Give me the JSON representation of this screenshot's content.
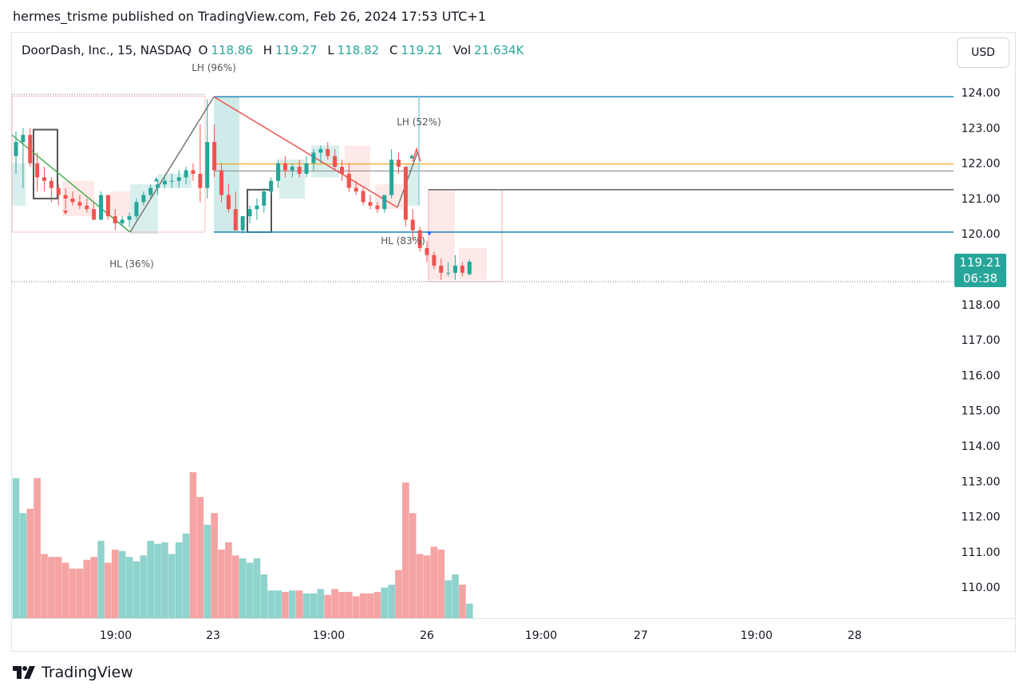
{
  "publisher_line": "hermes_trisme published on TradingView.com, Feb 26, 2024 17:53 UTC+1",
  "legend": {
    "title": "DoorDash, Inc., 15, NASDAQ",
    "open_label": "O",
    "open": "118.86",
    "high_label": "H",
    "high": "119.27",
    "low_label": "L",
    "low": "118.82",
    "close_label": "C",
    "close": "119.21",
    "vol_label": "Vol",
    "vol": "21.634K"
  },
  "currency": "USD",
  "last_price": {
    "price": "119.21",
    "countdown": "06:38"
  },
  "brand": "TradingView",
  "colors": {
    "up": "#26a69a",
    "down": "#ef5350",
    "vol_up": "#8fd3cd",
    "vol_down": "#f5a3a3",
    "blue_line": "#2962ff",
    "orange_line": "#f5a623"
  },
  "chart_data": {
    "type": "candlestick",
    "interval": "15",
    "symbol": "DoorDash, Inc. (NASDAQ)",
    "price_axis_ticks": [
      "124.00",
      "123.00",
      "122.00",
      "121.00",
      "120.00",
      "118.00",
      "117.00",
      "116.00",
      "115.00",
      "114.00",
      "113.00",
      "112.00",
      "111.00",
      "110.00"
    ],
    "time_axis_ticks": [
      "19:00",
      "23",
      "19:00",
      "26",
      "19:00",
      "27",
      "19:00",
      "28"
    ],
    "ylim": [
      109.1,
      125.3
    ],
    "candles": [
      [
        122.2,
        122.9,
        121.7,
        122.6
      ],
      [
        122.6,
        123.0,
        121.3,
        122.8
      ],
      [
        122.8,
        123.0,
        121.9,
        122.0
      ],
      [
        122.0,
        122.3,
        121.2,
        121.6
      ],
      [
        121.6,
        121.9,
        121.2,
        121.5
      ],
      [
        121.5,
        121.6,
        120.9,
        121.3
      ],
      [
        121.3,
        121.4,
        120.8,
        121.1
      ],
      [
        121.1,
        121.3,
        120.7,
        121.0
      ],
      [
        121.0,
        121.2,
        120.8,
        120.9
      ],
      [
        120.9,
        121.1,
        120.7,
        120.8
      ],
      [
        120.8,
        121.0,
        120.6,
        120.7
      ],
      [
        120.7,
        120.9,
        120.4,
        120.4
      ],
      [
        120.4,
        121.2,
        120.4,
        121.1
      ],
      [
        121.1,
        121.1,
        120.4,
        120.5
      ],
      [
        120.5,
        120.7,
        120.1,
        120.3
      ],
      [
        120.3,
        120.5,
        120.2,
        120.4
      ],
      [
        120.4,
        120.6,
        120.2,
        120.5
      ],
      [
        120.5,
        121.0,
        120.4,
        120.9
      ],
      [
        120.9,
        121.2,
        120.8,
        121.1
      ],
      [
        121.1,
        121.4,
        121.0,
        121.3
      ],
      [
        121.3,
        121.5,
        121.1,
        121.4
      ],
      [
        121.4,
        121.6,
        121.3,
        121.5
      ],
      [
        121.5,
        121.7,
        121.3,
        121.5
      ],
      [
        121.5,
        121.8,
        121.3,
        121.6
      ],
      [
        121.6,
        121.9,
        121.4,
        121.8
      ],
      [
        121.8,
        122.0,
        121.5,
        121.7
      ],
      [
        121.7,
        123.1,
        120.9,
        121.3
      ],
      [
        121.3,
        123.8,
        121.0,
        122.6
      ],
      [
        122.6,
        123.1,
        121.6,
        121.8
      ],
      [
        121.8,
        122.0,
        120.9,
        121.1
      ],
      [
        121.1,
        121.4,
        120.6,
        120.7
      ],
      [
        120.7,
        121.2,
        120.1,
        120.1
      ],
      [
        120.1,
        120.5,
        120.0,
        120.5
      ],
      [
        120.5,
        120.8,
        120.3,
        120.7
      ],
      [
        120.7,
        121.0,
        120.4,
        120.8
      ],
      [
        120.8,
        121.3,
        120.6,
        121.2
      ],
      [
        121.2,
        121.6,
        121.1,
        121.5
      ],
      [
        121.5,
        122.1,
        121.3,
        122.0
      ],
      [
        122.0,
        122.2,
        121.6,
        121.8
      ],
      [
        121.8,
        122.0,
        121.6,
        121.9
      ],
      [
        121.9,
        122.1,
        121.6,
        121.7
      ],
      [
        121.7,
        122.2,
        121.6,
        122.0
      ],
      [
        122.0,
        122.4,
        121.8,
        122.3
      ],
      [
        122.3,
        122.5,
        122.0,
        122.4
      ],
      [
        122.4,
        122.6,
        122.1,
        122.2
      ],
      [
        122.2,
        122.4,
        121.8,
        121.9
      ],
      [
        121.9,
        122.1,
        121.5,
        121.7
      ],
      [
        121.7,
        122.0,
        121.2,
        121.3
      ],
      [
        121.3,
        121.5,
        121.1,
        121.2
      ],
      [
        121.2,
        121.3,
        120.8,
        120.9
      ],
      [
        120.9,
        121.1,
        120.7,
        120.8
      ],
      [
        120.8,
        120.9,
        120.6,
        120.7
      ],
      [
        120.7,
        121.1,
        120.6,
        121.1
      ],
      [
        121.1,
        122.4,
        121.0,
        122.1
      ],
      [
        122.1,
        122.3,
        121.7,
        121.9
      ],
      [
        121.9,
        121.9,
        120.2,
        120.4
      ],
      [
        120.4,
        120.7,
        119.8,
        120.1
      ],
      [
        120.1,
        120.2,
        119.5,
        119.6
      ],
      [
        119.6,
        119.8,
        119.2,
        119.4
      ],
      [
        119.4,
        119.5,
        119.0,
        119.1
      ],
      [
        119.1,
        119.3,
        118.7,
        118.9
      ],
      [
        118.9,
        119.2,
        118.8,
        118.9
      ],
      [
        118.9,
        119.4,
        118.7,
        119.1
      ],
      [
        119.1,
        119.2,
        118.8,
        118.9
      ],
      [
        118.86,
        119.27,
        118.82,
        119.21
      ]
    ],
    "volume": [
      0.96,
      0.72,
      0.75,
      0.96,
      0.44,
      0.42,
      0.42,
      0.38,
      0.34,
      0.34,
      0.4,
      0.42,
      0.53,
      0.38,
      0.47,
      0.46,
      0.42,
      0.39,
      0.43,
      0.53,
      0.51,
      0.52,
      0.44,
      0.52,
      0.58,
      1.0,
      0.83,
      0.64,
      0.72,
      0.47,
      0.52,
      0.43,
      0.41,
      0.38,
      0.41,
      0.3,
      0.19,
      0.19,
      0.18,
      0.19,
      0.19,
      0.17,
      0.17,
      0.2,
      0.16,
      0.2,
      0.18,
      0.18,
      0.15,
      0.17,
      0.17,
      0.18,
      0.21,
      0.23,
      0.33,
      0.93,
      0.72,
      0.44,
      0.43,
      0.49,
      0.47,
      0.26,
      0.3,
      0.23,
      0.1
    ],
    "annotations": [
      "LH (96%)",
      "LH (52%)",
      "HL (83%)",
      "HL (36%)"
    ],
    "horizontal_levels": [
      {
        "price": 123.88,
        "color": "#2b8bb8"
      },
      {
        "price": 120.05,
        "color": "#2b8bb8"
      },
      {
        "price": 121.98,
        "color": "#f5a623"
      },
      {
        "price": 121.78,
        "color": "#999999"
      },
      {
        "price": 121.25,
        "color": "#555555"
      }
    ]
  }
}
